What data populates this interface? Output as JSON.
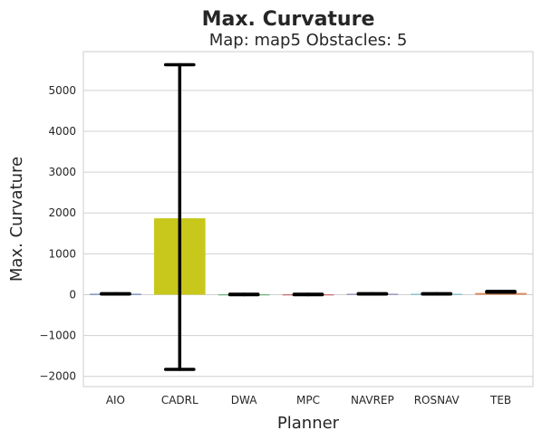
{
  "chart_data": {
    "type": "bar",
    "title": "Max. Curvature",
    "subtitle": "Map: map5 Obstacles: 5",
    "xlabel": "Planner",
    "ylabel": "Max. Curvature",
    "ylim": [
      -2250,
      5950
    ],
    "yticks": [
      -2000,
      -1000,
      0,
      1000,
      2000,
      3000,
      4000,
      5000
    ],
    "grid": true,
    "categories": [
      "AIO",
      "CADRL",
      "DWA",
      "MPC",
      "NAVREP",
      "ROSNAV",
      "TEB"
    ],
    "values": [
      20,
      1870,
      5,
      5,
      20,
      20,
      40
    ],
    "error_low": [
      15,
      -1830,
      0,
      0,
      15,
      15,
      60
    ],
    "error_high": [
      25,
      5630,
      10,
      10,
      25,
      25,
      80
    ],
    "colors": [
      "#4c72b0",
      "#c8c81c",
      "#55a868",
      "#c44e52",
      "#8172b2",
      "#64b5cd",
      "#dd8452"
    ]
  }
}
